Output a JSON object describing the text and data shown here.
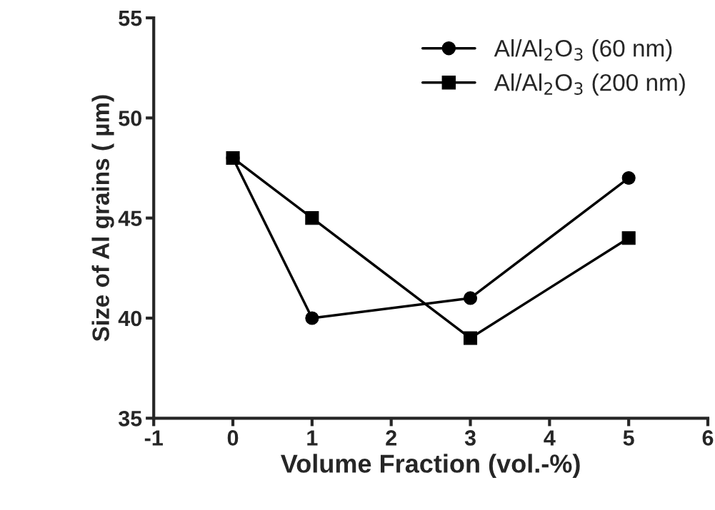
{
  "chart_data": {
    "type": "line",
    "xlabel": "Volume Fraction (vol.-%)",
    "ylabel": "Size of Al grains ( µm)",
    "xlim": [
      -1,
      6
    ],
    "xticks": [
      -1,
      0,
      1,
      2,
      3,
      4,
      5,
      6
    ],
    "ylim": [
      35,
      55
    ],
    "yticks": [
      35,
      40,
      45,
      50,
      55
    ],
    "grid": false,
    "legend": "top right",
    "line_style": "solid",
    "series": [
      {
        "name": "Al/Al$_{2}$O$_{3}$ (60 nm)",
        "color": "#000000",
        "marker": "circle",
        "x": [
          0,
          1,
          3,
          5
        ],
        "values": [
          48,
          40,
          41,
          47
        ]
      },
      {
        "name": "Al/Al$_{2}$O$_{3}$ (200 nm)",
        "color": "#000000",
        "marker": "square",
        "x": [
          0,
          1,
          3,
          5
        ],
        "values": [
          48,
          45,
          39,
          44
        ]
      }
    ]
  }
}
